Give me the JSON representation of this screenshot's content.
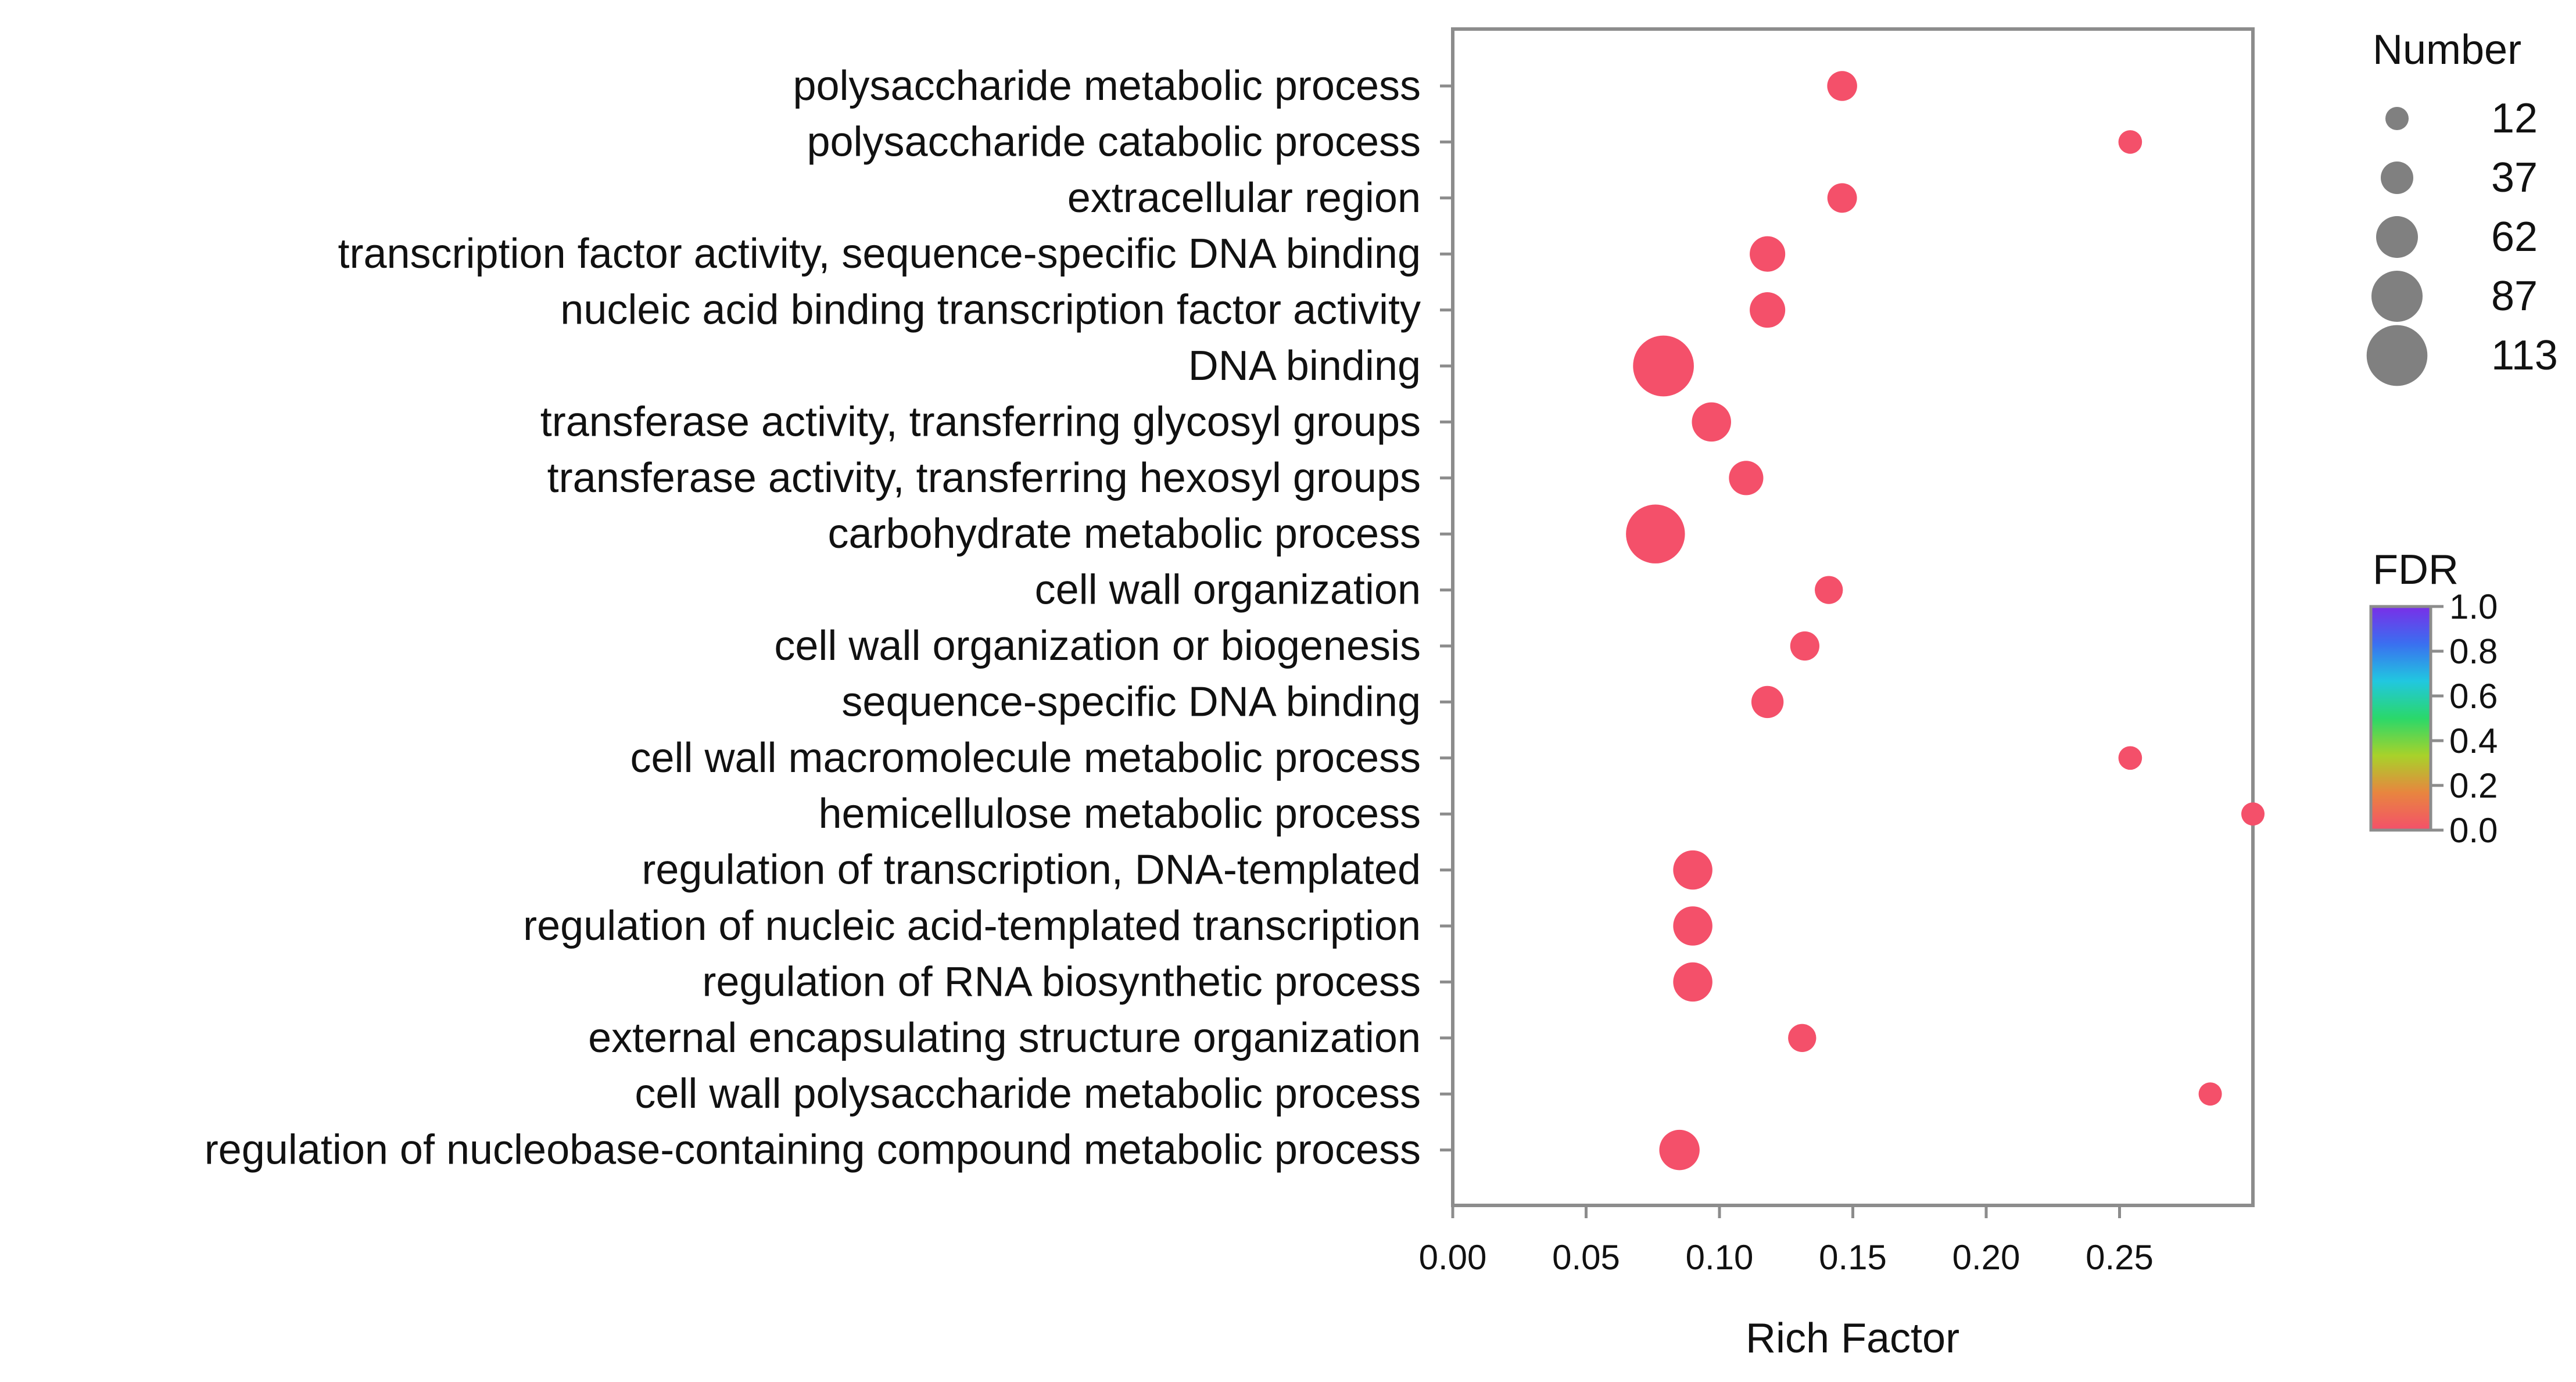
{
  "chart_data": {
    "type": "scatter",
    "xlabel": "Rich Factor",
    "xlim": [
      0.0,
      0.3
    ],
    "xticks": [
      "0.00",
      "0.05",
      "0.10",
      "0.15",
      "0.20",
      "0.25"
    ],
    "terms": [
      {
        "label": "polysaccharide metabolic process",
        "x": 0.146,
        "number": 30,
        "fdr": 0.0
      },
      {
        "label": "polysaccharide catabolic process",
        "x": 0.254,
        "number": 13,
        "fdr": 0.0
      },
      {
        "label": "extracellular region",
        "x": 0.146,
        "number": 29,
        "fdr": 0.0
      },
      {
        "label": "transcription factor activity, sequence-specific DNA binding",
        "x": 0.118,
        "number": 45,
        "fdr": 0.0
      },
      {
        "label": "nucleic acid binding transcription factor activity",
        "x": 0.118,
        "number": 45,
        "fdr": 0.0
      },
      {
        "label": "DNA binding",
        "x": 0.079,
        "number": 113,
        "fdr": 0.0
      },
      {
        "label": "transferase activity, transferring glycosyl groups",
        "x": 0.097,
        "number": 55,
        "fdr": 0.0
      },
      {
        "label": "transferase activity, transferring hexosyl groups",
        "x": 0.11,
        "number": 42,
        "fdr": 0.0
      },
      {
        "label": "carbohydrate metabolic process",
        "x": 0.076,
        "number": 108,
        "fdr": 0.0
      },
      {
        "label": "cell wall organization",
        "x": 0.141,
        "number": 25,
        "fdr": 0.0
      },
      {
        "label": "cell wall organization or biogenesis",
        "x": 0.132,
        "number": 28,
        "fdr": 0.0
      },
      {
        "label": "sequence-specific DNA binding",
        "x": 0.118,
        "number": 36,
        "fdr": 0.0
      },
      {
        "label": "cell wall macromolecule metabolic process",
        "x": 0.254,
        "number": 13,
        "fdr": 0.0
      },
      {
        "label": "hemicellulose metabolic process",
        "x": 0.3,
        "number": 12,
        "fdr": 0.0
      },
      {
        "label": "regulation of transcription, DNA-templated",
        "x": 0.09,
        "number": 55,
        "fdr": 0.0
      },
      {
        "label": "regulation of nucleic acid-templated transcription",
        "x": 0.09,
        "number": 55,
        "fdr": 0.0
      },
      {
        "label": "regulation of RNA biosynthetic process",
        "x": 0.09,
        "number": 55,
        "fdr": 0.0
      },
      {
        "label": "external encapsulating structure organization",
        "x": 0.131,
        "number": 25,
        "fdr": 0.0
      },
      {
        "label": "cell wall polysaccharide metabolic process",
        "x": 0.284,
        "number": 12,
        "fdr": 0.0
      },
      {
        "label": "regulation of nucleobase-containing compound metabolic process",
        "x": 0.085,
        "number": 58,
        "fdr": 0.0
      }
    ],
    "size_legend": {
      "title": "Number",
      "items": [
        {
          "label": "12",
          "value": 12
        },
        {
          "label": "37",
          "value": 37
        },
        {
          "label": "62",
          "value": 62
        },
        {
          "label": "87",
          "value": 87
        },
        {
          "label": "113",
          "value": 113
        }
      ]
    },
    "color_legend": {
      "title": "FDR",
      "range": [
        0.0,
        1.0
      ],
      "tick_labels": [
        "1.0",
        "0.8",
        "0.6",
        "0.4",
        "0.2",
        "0.0"
      ],
      "colors": [
        "#f4506a",
        "#e8853f",
        "#a8d22a",
        "#2ad86a",
        "#21c7e0",
        "#3a6ff0",
        "#7a2ee8"
      ]
    },
    "legend_position": "right"
  }
}
